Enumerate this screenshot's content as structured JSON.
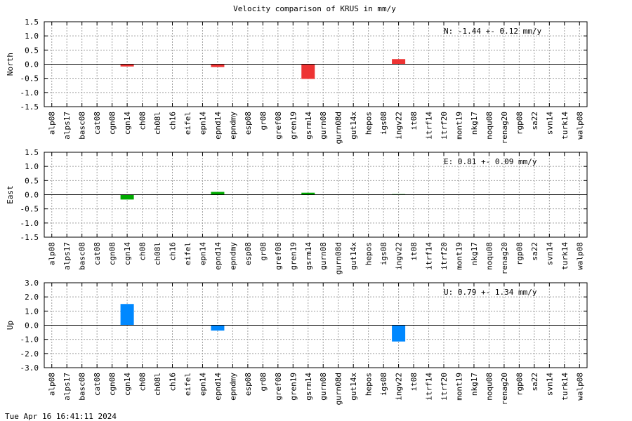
{
  "title": "Velocity comparison of KRUS in mm/y",
  "timestamp": "Tue Apr 16 16:41:11 2024",
  "chart_data": [
    {
      "type": "bar",
      "title": "",
      "ylabel": "North",
      "ylim": [
        -1.5,
        1.5
      ],
      "yticks": [
        "-1.5",
        "-1.0",
        "-0.5",
        "0.0",
        "0.5",
        "1.0",
        "1.5"
      ],
      "grid": true,
      "color": "#ee3333",
      "annotation": "N:  -1.44 +-  0.12 mm/y",
      "categories": [
        "alp08",
        "alps17",
        "basc08",
        "cat08",
        "cgn08",
        "cgn14",
        "ch08",
        "ch08l",
        "ch16",
        "eifel",
        "epn14",
        "epnd14",
        "epndmy",
        "esp08",
        "gr08",
        "gref08",
        "gren19",
        "gsrm14",
        "gurn08",
        "gurn08d",
        "gut14x",
        "hepos",
        "igs08",
        "ingv22",
        "it08",
        "itrf14",
        "itrf20",
        "mont19",
        "nkg17",
        "noqu08",
        "renag20",
        "rgp08",
        "sa22",
        "svn14",
        "turk14",
        "walp08"
      ],
      "values": [
        0,
        0,
        0,
        0,
        0,
        -0.08,
        0,
        0,
        0,
        0,
        0,
        -0.1,
        0,
        0,
        0,
        0,
        0,
        -0.52,
        0,
        0,
        0,
        0,
        0,
        0.18,
        0,
        0,
        0,
        0,
        0,
        0,
        0,
        0,
        0,
        0,
        0,
        0
      ]
    },
    {
      "type": "bar",
      "title": "",
      "ylabel": "East",
      "ylim": [
        -1.5,
        1.5
      ],
      "yticks": [
        "-1.5",
        "-1.0",
        "-0.5",
        "0.0",
        "0.5",
        "1.0",
        "1.5"
      ],
      "grid": true,
      "color": "#00aa00",
      "annotation": "E:   0.81 +-  0.09 mm/y",
      "categories": [
        "alp08",
        "alps17",
        "basc08",
        "cat08",
        "cgn08",
        "cgn14",
        "ch08",
        "ch08l",
        "ch16",
        "eifel",
        "epn14",
        "epnd14",
        "epndmy",
        "esp08",
        "gr08",
        "gref08",
        "gren19",
        "gsrm14",
        "gurn08",
        "gurn08d",
        "gut14x",
        "hepos",
        "igs08",
        "ingv22",
        "it08",
        "itrf14",
        "itrf20",
        "mont19",
        "nkg17",
        "noqu08",
        "renag20",
        "rgp08",
        "sa22",
        "svn14",
        "turk14",
        "walp08"
      ],
      "values": [
        0,
        0,
        0,
        0,
        0,
        -0.17,
        0,
        0,
        0,
        0,
        0,
        0.1,
        0,
        0,
        0,
        0,
        0,
        0.07,
        0,
        0,
        0,
        0,
        0,
        0.02,
        0,
        0,
        0,
        0,
        0,
        0,
        0,
        0,
        0,
        0,
        0,
        0
      ]
    },
    {
      "type": "bar",
      "title": "",
      "ylabel": "Up",
      "ylim": [
        -3.0,
        3.0
      ],
      "yticks": [
        "-3.0",
        "-2.0",
        "-1.0",
        "0.0",
        "1.0",
        "2.0",
        "3.0"
      ],
      "grid": true,
      "color": "#0088ff",
      "annotation": "U:   0.79 +-  1.34 mm/y",
      "categories": [
        "alp08",
        "alps17",
        "basc08",
        "cat08",
        "cgn08",
        "cgn14",
        "ch08",
        "ch08l",
        "ch16",
        "eifel",
        "epn14",
        "epnd14",
        "epndmy",
        "esp08",
        "gr08",
        "gref08",
        "gren19",
        "gsrm14",
        "gurn08",
        "gurn08d",
        "gut14x",
        "hepos",
        "igs08",
        "ingv22",
        "it08",
        "itrf14",
        "itrf20",
        "mont19",
        "nkg17",
        "noqu08",
        "renag20",
        "rgp08",
        "sa22",
        "svn14",
        "turk14",
        "walp08"
      ],
      "values": [
        0,
        0,
        0,
        0,
        0,
        1.5,
        0,
        0,
        0,
        0,
        0,
        -0.38,
        0,
        0,
        0,
        0,
        0,
        0,
        0,
        0,
        0,
        0,
        0,
        -1.15,
        0,
        0,
        0,
        0,
        0,
        0,
        0,
        0,
        0,
        0,
        0,
        0
      ]
    }
  ]
}
